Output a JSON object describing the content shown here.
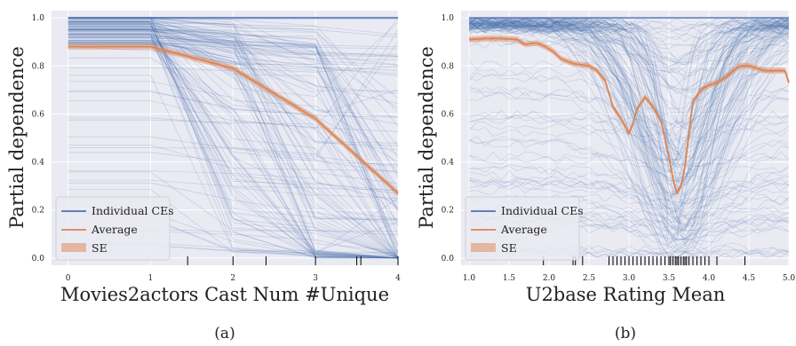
{
  "colors": {
    "background": "#eaeaf2",
    "grid": "#ffffff",
    "ice": "#4c72b0",
    "average": "#dd8452",
    "se": "#dd8452",
    "rug": "#000000"
  },
  "chart_data": [
    {
      "type": "line",
      "caption": "(a)",
      "title": "",
      "xlabel": "Movies2actors Cast Num #Unique",
      "ylabel": "Partial dependence",
      "xlim": [
        -0.2,
        4.0
      ],
      "ylim": [
        -0.03,
        1.03
      ],
      "xticks": [
        "0",
        "1",
        "2",
        "3",
        "4"
      ],
      "yticks": [
        "0.0",
        "0.2",
        "0.4",
        "0.6",
        "0.8",
        "1.0"
      ],
      "grid": true,
      "legend": {
        "placement": "lower-left",
        "entries": [
          "Individual CEs",
          "Average",
          "SE"
        ]
      },
      "series": [
        {
          "name": "Average",
          "x": [
            0,
            1,
            2,
            3,
            4
          ],
          "y": [
            0.88,
            0.88,
            0.79,
            0.58,
            0.27
          ]
        }
      ],
      "individual_ce_endpoints_at_x4": [
        1.0,
        0.98,
        0.95,
        0.9,
        0.8,
        0.7,
        0.55,
        0.45,
        0.35,
        0.25,
        0.2,
        0.15,
        0.1,
        0.05,
        0.02,
        0.0
      ],
      "rug_x": [
        1.45,
        2.0,
        2.4,
        3.0,
        3.5,
        3.55,
        4.0
      ]
    },
    {
      "type": "line",
      "caption": "(b)",
      "title": "",
      "xlabel": "U2base Rating Mean",
      "ylabel": "Partial dependence",
      "xlim": [
        0.9,
        5.0
      ],
      "ylim": [
        -0.03,
        1.03
      ],
      "xticks": [
        "1.0",
        "1.5",
        "2.0",
        "2.5",
        "3.0",
        "3.5",
        "4.0",
        "4.5",
        "5.0"
      ],
      "yticks": [
        "0.0",
        "0.2",
        "0.4",
        "0.6",
        "0.8",
        "1.0"
      ],
      "grid": true,
      "legend": {
        "placement": "lower-left",
        "entries": [
          "Individual CEs",
          "Average",
          "SE"
        ]
      },
      "series": [
        {
          "name": "Average",
          "x": [
            1.0,
            1.3,
            1.6,
            1.7,
            1.85,
            1.95,
            2.05,
            2.15,
            2.3,
            2.5,
            2.6,
            2.7,
            2.8,
            2.9,
            2.95,
            3.0,
            3.05,
            3.1,
            3.2,
            3.3,
            3.4,
            3.45,
            3.5,
            3.55,
            3.6,
            3.65,
            3.7,
            3.75,
            3.8,
            3.9,
            4.0,
            4.1,
            4.2,
            4.3,
            4.4,
            4.5,
            4.6,
            4.7,
            4.8,
            4.9,
            4.95,
            5.0
          ],
          "y": [
            0.91,
            0.915,
            0.91,
            0.89,
            0.895,
            0.88,
            0.86,
            0.83,
            0.81,
            0.8,
            0.78,
            0.74,
            0.63,
            0.58,
            0.55,
            0.52,
            0.56,
            0.62,
            0.67,
            0.63,
            0.57,
            0.5,
            0.42,
            0.33,
            0.27,
            0.3,
            0.38,
            0.52,
            0.65,
            0.7,
            0.72,
            0.73,
            0.75,
            0.78,
            0.8,
            0.8,
            0.79,
            0.78,
            0.78,
            0.78,
            0.78,
            0.73
          ]
        }
      ],
      "rug_x": [
        1.93,
        2.3,
        2.33,
        2.42,
        2.75,
        2.8,
        2.85,
        2.9,
        2.95,
        3.0,
        3.05,
        3.1,
        3.15,
        3.2,
        3.25,
        3.3,
        3.35,
        3.4,
        3.45,
        3.5,
        3.52,
        3.55,
        3.58,
        3.6,
        3.62,
        3.65,
        3.68,
        3.7,
        3.72,
        3.75,
        3.8,
        3.85,
        3.9,
        3.95,
        4.0,
        4.1,
        4.45
      ]
    }
  ]
}
